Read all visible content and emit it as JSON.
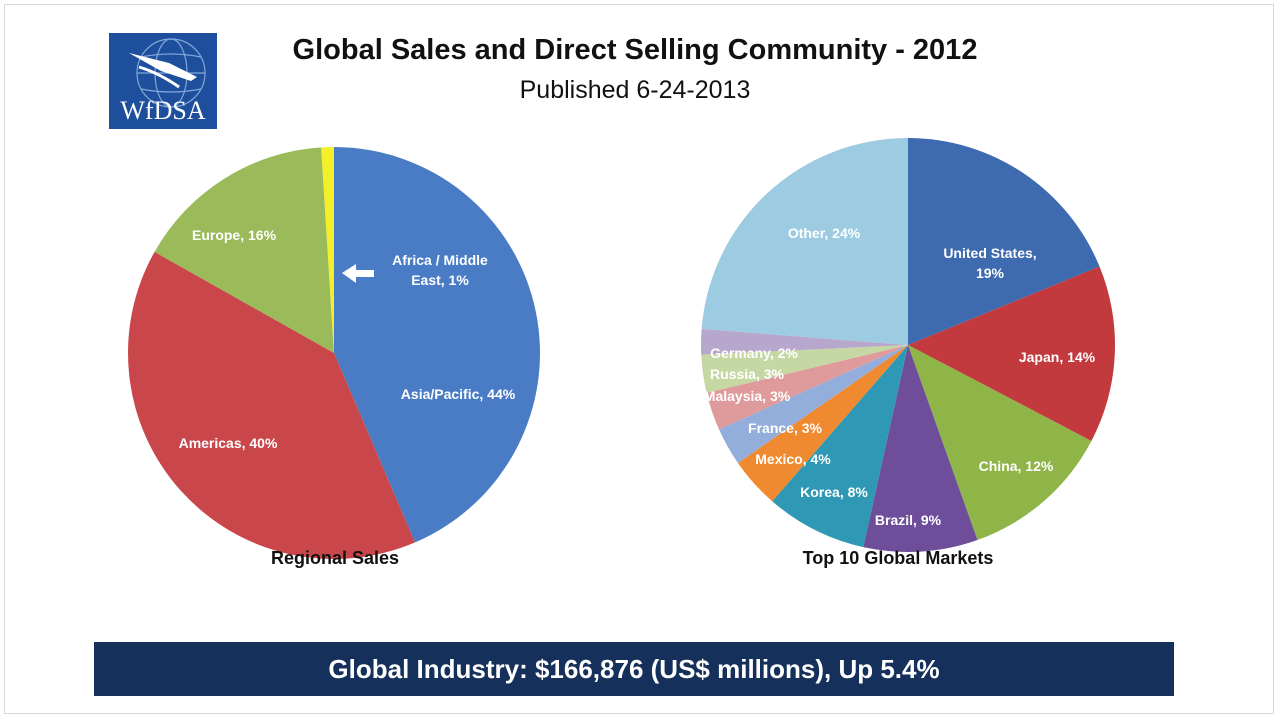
{
  "header": {
    "logo_text": "WfDSA",
    "title": "Global Sales and Direct Selling Community - 2012",
    "subtitle": "Published 6-24-2013"
  },
  "colors": {
    "banner_bg": "#15305a",
    "logo_bg": "#1d4f9c"
  },
  "chart_data": [
    {
      "type": "pie",
      "title": "Regional Sales",
      "slices": [
        {
          "label": "Asia/Pacific, 44%",
          "value": 44,
          "color": "#4a7cc6"
        },
        {
          "label": "Americas, 40%",
          "value": 40,
          "color": "#c9474a"
        },
        {
          "label": "Europe, 16%",
          "value": 16,
          "color": "#9bbb5a"
        },
        {
          "label": "Africa / Middle East, 1%",
          "value": 1,
          "color": "#f3f02a"
        }
      ],
      "annotation": "Africa / Middle East, 1%"
    },
    {
      "type": "pie",
      "title": "Top 10 Global Markets",
      "slices": [
        {
          "label": "United States, 19%",
          "value": 19,
          "color": "#3e6ab0"
        },
        {
          "label": "Japan, 14%",
          "value": 14,
          "color": "#c23a3d"
        },
        {
          "label": "China, 12%",
          "value": 12,
          "color": "#8fb448"
        },
        {
          "label": "Brazil, 9%",
          "value": 9,
          "color": "#6e4e9a"
        },
        {
          "label": "Korea, 8%",
          "value": 8,
          "color": "#2f98b4"
        },
        {
          "label": "Mexico, 4%",
          "value": 4,
          "color": "#f08a30"
        },
        {
          "label": "France, 3%",
          "value": 3,
          "color": "#93aedb"
        },
        {
          "label": "Malaysia, 3%",
          "value": 3,
          "color": "#df9a9b"
        },
        {
          "label": "Russia, 3%",
          "value": 3,
          "color": "#c5d8a4"
        },
        {
          "label": "Germany, 2%",
          "value": 2,
          "color": "#b8a7cc"
        },
        {
          "label": "Other, 24%",
          "value": 24,
          "color": "#9ccbe2"
        }
      ]
    }
  ],
  "footer": {
    "banner_text": "Global Industry: $166,876 (US$ millions), Up 5.4%"
  }
}
